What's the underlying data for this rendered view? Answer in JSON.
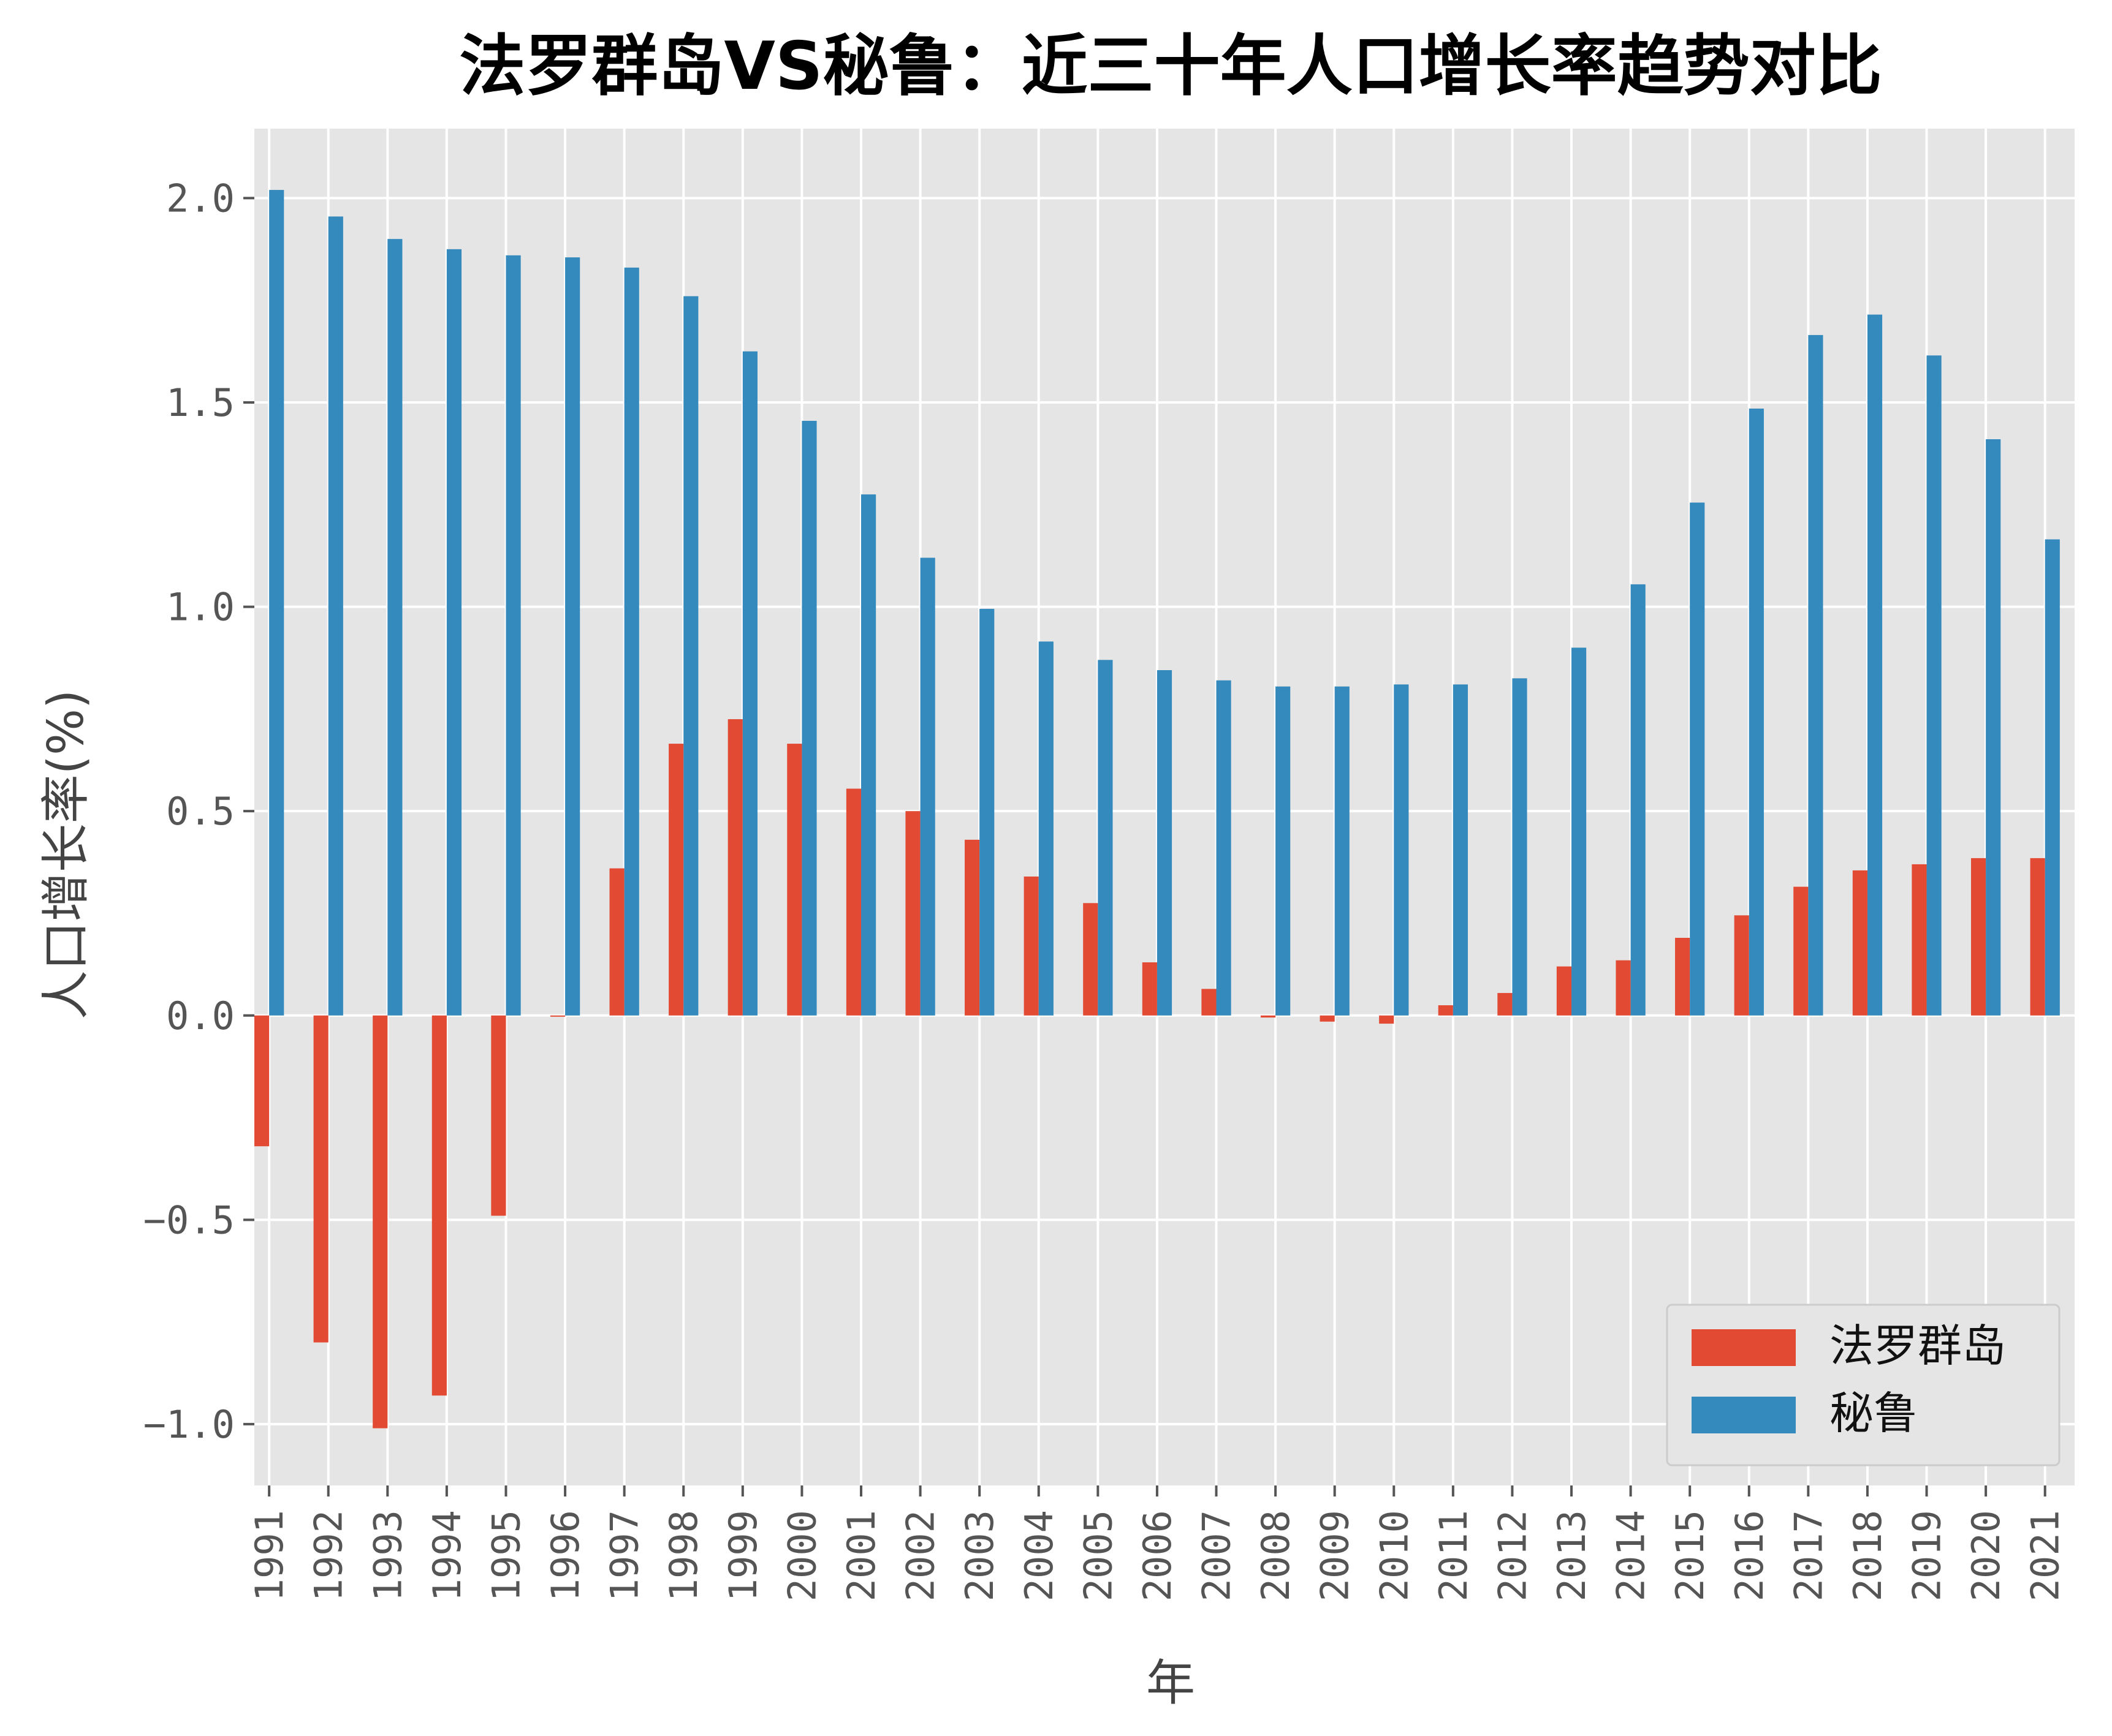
{
  "chart_data": {
    "type": "bar",
    "title": "法罗群岛VS秘鲁：近三十年人口增长率趋势对比",
    "xlabel": "年",
    "ylabel": "人口增长率(%)",
    "ylim": [
      -1.15,
      2.17
    ],
    "yticks": [
      -1.0,
      -0.5,
      0.0,
      0.5,
      1.0,
      1.5,
      2.0
    ],
    "ytick_labels": [
      "−1.0",
      "−0.5",
      "0.0",
      "0.5",
      "1.0",
      "1.5",
      "2.0"
    ],
    "grid": true,
    "legend_position": "bottom-right",
    "categories": [
      "1991",
      "1992",
      "1993",
      "1994",
      "1995",
      "1996",
      "1997",
      "1998",
      "1999",
      "2000",
      "2001",
      "2002",
      "2003",
      "2004",
      "2005",
      "2006",
      "2007",
      "2008",
      "2009",
      "2010",
      "2011",
      "2012",
      "2013",
      "2014",
      "2015",
      "2016",
      "2017",
      "2018",
      "2019",
      "2020",
      "2021"
    ],
    "series": [
      {
        "name": "法罗群岛",
        "color": "#E24A33",
        "values": [
          -0.32,
          -0.8,
          -1.01,
          -0.93,
          -0.49,
          -0.003,
          0.36,
          0.665,
          0.725,
          0.665,
          0.555,
          0.5,
          0.43,
          0.34,
          0.275,
          0.13,
          0.065,
          -0.005,
          -0.015,
          -0.02,
          0.025,
          0.055,
          0.12,
          0.135,
          0.19,
          0.245,
          0.315,
          0.355,
          0.37,
          0.385,
          0.385
        ]
      },
      {
        "name": "秘鲁",
        "color": "#348ABD",
        "values": [
          2.02,
          1.955,
          1.9,
          1.875,
          1.86,
          1.855,
          1.83,
          1.76,
          1.625,
          1.455,
          1.275,
          1.12,
          0.995,
          0.915,
          0.87,
          0.845,
          0.82,
          0.805,
          0.805,
          0.81,
          0.81,
          0.825,
          0.9,
          1.055,
          1.255,
          1.485,
          1.665,
          1.715,
          1.615,
          1.41,
          1.165
        ]
      }
    ]
  }
}
